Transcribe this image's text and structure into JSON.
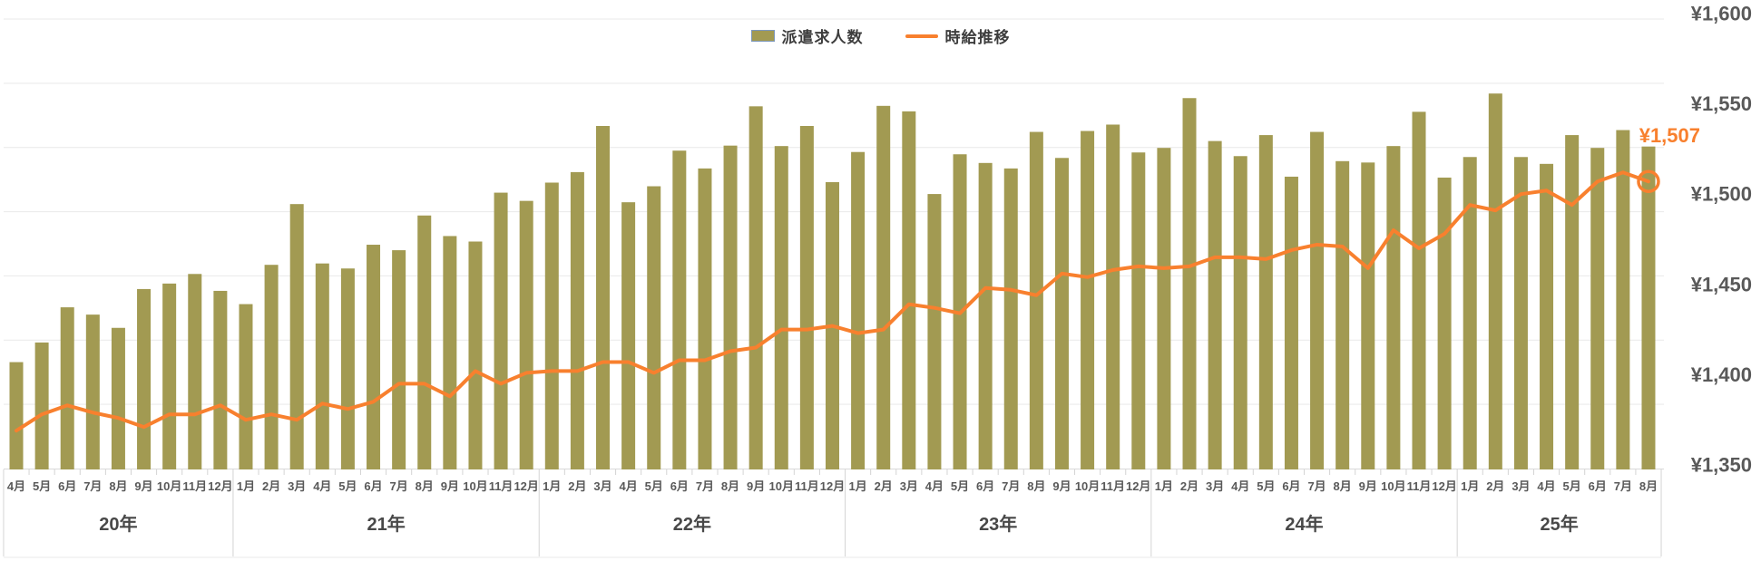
{
  "legend": {
    "bars_label": "派遣求人数",
    "line_label": "時給推移"
  },
  "colors": {
    "bar": "#a29a52",
    "bar_swatch_border": "#7d97bb",
    "line": "#f8802e",
    "grid": "#e9e9e9",
    "axis_line": "#d9d9d9",
    "tick": "#d4d4d4",
    "value_label": "#f8802e"
  },
  "y_axis_right": {
    "labels": [
      "¥1,600",
      "¥1,550",
      "¥1,500",
      "¥1,450",
      "¥1,400",
      "¥1,350"
    ],
    "min": 1350,
    "max": 1600,
    "step": 50,
    "unit": "JPY"
  },
  "annotation": {
    "last_point_label": "¥1,507"
  },
  "chart_data": {
    "type": "bar+line",
    "title": "",
    "months": [
      "4月",
      "5月",
      "6月",
      "7月",
      "8月",
      "9月",
      "10月",
      "11月",
      "12月",
      "1月",
      "2月",
      "3月",
      "4月",
      "5月",
      "6月",
      "7月",
      "8月",
      "9月",
      "10月",
      "11月",
      "12月",
      "1月",
      "2月",
      "3月",
      "4月",
      "5月",
      "6月",
      "7月",
      "8月",
      "9月",
      "10月",
      "11月",
      "12月",
      "1月",
      "2月",
      "3月",
      "4月",
      "5月",
      "6月",
      "7月",
      "8月",
      "9月",
      "10月",
      "11月",
      "12月",
      "1月",
      "2月",
      "3月",
      "4月",
      "5月",
      "6月",
      "7月",
      "8月",
      "9月",
      "10月",
      "11月",
      "12月",
      "1月",
      "2月",
      "3月",
      "4月",
      "5月",
      "6月",
      "7月",
      "8月"
    ],
    "years": [
      {
        "label": "20年",
        "span": 9
      },
      {
        "label": "21年",
        "span": 12
      },
      {
        "label": "22年",
        "span": 12
      },
      {
        "label": "23年",
        "span": 12
      },
      {
        "label": "24年",
        "span": 12
      },
      {
        "label": "25年",
        "span": 8
      }
    ],
    "series": [
      {
        "name": "派遣求人数",
        "type": "bar",
        "axis": "left-hidden",
        "note": "left axis has no visible tick values; heights recorded as % of plot height",
        "values_pct_of_plot_height": [
          23.5,
          27.8,
          35.5,
          33.9,
          31.0,
          39.5,
          40.7,
          42.8,
          39.1,
          36.2,
          44.8,
          58.1,
          45.1,
          44.0,
          49.2,
          48.0,
          55.6,
          51.1,
          49.9,
          60.6,
          58.8,
          62.8,
          65.1,
          75.2,
          58.5,
          62.0,
          69.8,
          65.9,
          70.9,
          79.5,
          70.8,
          75.2,
          62.9,
          69.5,
          79.6,
          78.4,
          60.3,
          69.0,
          67.1,
          65.9,
          73.9,
          68.2,
          74.1,
          75.5,
          69.4,
          70.4,
          81.3,
          71.9,
          68.6,
          73.2,
          64.1,
          73.9,
          67.5,
          67.2,
          70.8,
          78.3,
          63.9,
          68.4,
          82.3,
          68.4,
          66.9,
          73.2,
          70.4,
          74.3,
          70.7
        ]
      },
      {
        "name": "時給推移",
        "type": "line",
        "axis": "right",
        "unit": "JPY/hour",
        "values": [
          1369,
          1378,
          1383,
          1379,
          1376,
          1371,
          1378,
          1378,
          1383,
          1375,
          1378,
          1375,
          1384,
          1381,
          1385,
          1395,
          1395,
          1388,
          1402,
          1395,
          1401,
          1402,
          1402,
          1407,
          1407,
          1401,
          1408,
          1408,
          1413,
          1415,
          1425,
          1425,
          1427,
          1423,
          1425,
          1439,
          1437,
          1434,
          1448,
          1447,
          1444,
          1456,
          1454,
          1458,
          1460,
          1459,
          1460,
          1465,
          1465,
          1464,
          1469,
          1472,
          1471,
          1459,
          1480,
          1470,
          1478,
          1494,
          1491,
          1500,
          1502,
          1494,
          1507,
          1512,
          1507
        ]
      }
    ],
    "ylim_right": [
      1350,
      1600
    ],
    "grid": "horizontal",
    "legend_position": "top-center",
    "last_point_marker": "open-circle"
  }
}
